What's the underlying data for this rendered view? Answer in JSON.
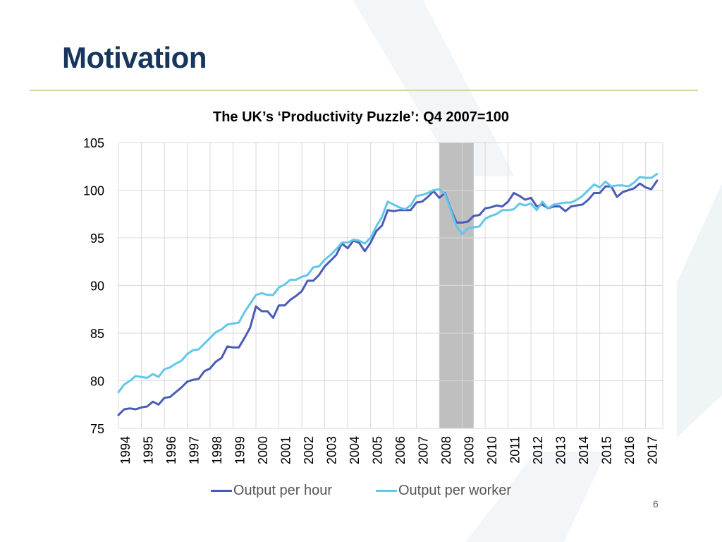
{
  "slide": {
    "title": "Motivation",
    "page_number": "6"
  },
  "colors": {
    "hour": "#4a5cb5",
    "worker": "#62c7ea",
    "recession": "#bfbfbf",
    "grid": "#d9d9d9",
    "title": "#17365d"
  },
  "chart_data": {
    "type": "line",
    "title": "The UK’s ‘Productivity Puzzle’: Q4 2007=100",
    "ylim": [
      75,
      105
    ],
    "yticks": [
      75,
      80,
      85,
      90,
      95,
      100,
      105
    ],
    "xlim": [
      1994,
      2017.75
    ],
    "xticks": [
      "1994",
      "1995",
      "1996",
      "1997",
      "1998",
      "1999",
      "2000",
      "2001",
      "2002",
      "2003",
      "2004",
      "2005",
      "2006",
      "2007",
      "2008",
      "2009",
      "2010",
      "2011",
      "2012",
      "2013",
      "2014",
      "2015",
      "2016",
      "2017"
    ],
    "grid": true,
    "legend_position": "bottom",
    "recession_band": [
      2008.0,
      2009.5
    ],
    "series": [
      {
        "name": "Output per hour",
        "color": "#4a5cb5",
        "start": 1994.0,
        "step": 0.25,
        "values": [
          76.4,
          77.0,
          77.1,
          77.0,
          77.2,
          77.3,
          77.8,
          77.5,
          78.2,
          78.3,
          78.8,
          79.3,
          79.9,
          80.1,
          80.2,
          81.0,
          81.3,
          82.0,
          82.4,
          83.6,
          83.5,
          83.5,
          84.5,
          85.6,
          87.8,
          87.3,
          87.3,
          86.6,
          87.9,
          87.9,
          88.5,
          88.9,
          89.4,
          90.5,
          90.5,
          91.1,
          92.0,
          92.6,
          93.2,
          94.4,
          93.9,
          94.7,
          94.5,
          93.6,
          94.5,
          95.7,
          96.3,
          97.9,
          97.8,
          97.9,
          97.9,
          97.9,
          98.7,
          98.8,
          99.3,
          99.9,
          99.2,
          99.7,
          98.0,
          96.6,
          96.6,
          96.7,
          97.3,
          97.4,
          98.1,
          98.2,
          98.4,
          98.3,
          98.8,
          99.7,
          99.4,
          99.0,
          99.2,
          98.3,
          98.5,
          98.1,
          98.3,
          98.3,
          97.8,
          98.3,
          98.4,
          98.5,
          99.0,
          99.7,
          99.7,
          100.4,
          100.4,
          99.3,
          99.8,
          100.0,
          100.2,
          100.7,
          100.3,
          100.1,
          101.0
        ]
      },
      {
        "name": "Output per worker",
        "color": "#62c7ea",
        "start": 1994.0,
        "step": 0.25,
        "values": [
          78.8,
          79.6,
          80.0,
          80.5,
          80.4,
          80.3,
          80.7,
          80.4,
          81.2,
          81.4,
          81.8,
          82.1,
          82.8,
          83.2,
          83.3,
          83.9,
          84.5,
          85.1,
          85.4,
          85.9,
          86.0,
          86.1,
          87.2,
          88.1,
          89.0,
          89.2,
          89.0,
          89.0,
          89.8,
          90.1,
          90.6,
          90.6,
          90.9,
          91.1,
          91.9,
          92.0,
          92.7,
          93.2,
          93.8,
          94.5,
          94.5,
          94.8,
          94.7,
          94.4,
          95.0,
          96.2,
          97.2,
          98.8,
          98.5,
          98.2,
          98.0,
          98.4,
          99.4,
          99.5,
          99.7,
          100.0,
          100.1,
          99.6,
          97.9,
          96.2,
          95.4,
          96.0,
          96.1,
          96.2,
          97.0,
          97.3,
          97.5,
          97.9,
          97.9,
          98.0,
          98.6,
          98.4,
          98.6,
          97.9,
          98.8,
          98.1,
          98.5,
          98.6,
          98.7,
          98.7,
          99.0,
          99.4,
          100.0,
          100.6,
          100.3,
          100.9,
          100.4,
          100.5,
          100.5,
          100.4,
          100.8,
          101.4,
          101.3,
          101.3,
          101.7
        ]
      }
    ]
  }
}
